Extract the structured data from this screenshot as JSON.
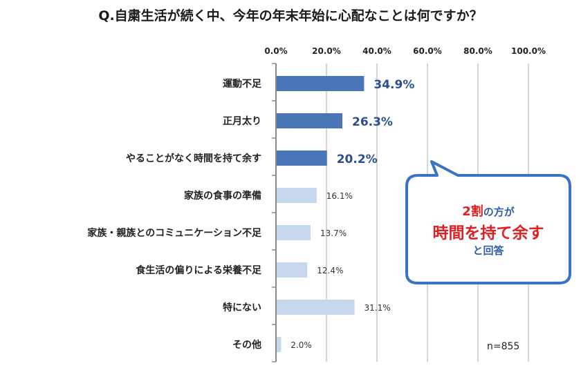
{
  "title": "Q.自粛生活が続く中、今年の年末年始に心配なことは何ですか？",
  "chart_data": {
    "type": "bar",
    "orientation": "horizontal",
    "categories": [
      "運動不足",
      "正月太り",
      "やることがなく時間を持て余す",
      "家族の食事の準備",
      "家族・親族とのコミュニケーション不足",
      "食生活の偏りによる栄養不足",
      "特にない",
      "その他"
    ],
    "values": [
      34.9,
      26.3,
      20.2,
      16.1,
      13.7,
      12.4,
      31.1,
      2.0
    ],
    "value_labels": [
      "34.9%",
      "26.3%",
      "20.2%",
      "16.1%",
      "13.7%",
      "12.4%",
      "31.1%",
      "2.0%"
    ],
    "highlighted": [
      true,
      true,
      true,
      false,
      false,
      false,
      false,
      false
    ],
    "xlim": [
      0,
      100
    ],
    "ticks": [
      0,
      20,
      40,
      60,
      80,
      100
    ],
    "tick_labels": [
      "0.0%",
      "20.0%",
      "40.0%",
      "60.0%",
      "80.0%",
      "100.0%"
    ],
    "axis_position": "top",
    "grid": true
  },
  "colors": {
    "highlight_bar": "#4a76b8",
    "normal_bar": "#c6d7ee",
    "highlight_label": "#2a4f8f",
    "grid": "#c8c8c8",
    "callout_border": "#3a73c4",
    "callout_accent": "#e02020"
  },
  "callout": {
    "line1_big": "2割",
    "line1_small": "の方が",
    "line2": "時間を持て余す",
    "line3": "と回答"
  },
  "note": "n=855"
}
